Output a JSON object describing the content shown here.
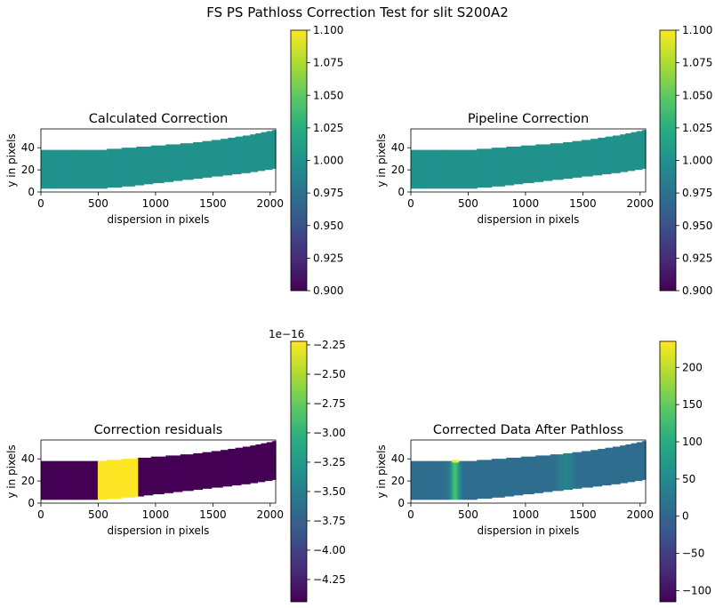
{
  "figure": {
    "suptitle": "FS PS Pathloss Correction Test for slit S200A2"
  },
  "chart_data": [
    {
      "type": "heatmap",
      "title": "Calculated Correction",
      "xlabel": "dispersion in pixels",
      "ylabel": "y in pixels",
      "xlim": [
        0,
        2048
      ],
      "ylim": [
        0,
        57
      ],
      "xticks": [
        "0",
        "500",
        "1000",
        "1500",
        "2000"
      ],
      "yticks": [
        "0",
        "20",
        "40"
      ],
      "fill": "uniform",
      "value": 1.0,
      "colorbar": {
        "min": 0.9,
        "max": 1.1,
        "ticks": [
          "0.900",
          "0.925",
          "0.950",
          "0.975",
          "1.000",
          "1.025",
          "1.050",
          "1.075",
          "1.100"
        ],
        "offset_text": ""
      }
    },
    {
      "type": "heatmap",
      "title": "Pipeline Correction",
      "xlabel": "dispersion in pixels",
      "ylabel": "y in pixels",
      "xlim": [
        0,
        2048
      ],
      "ylim": [
        0,
        57
      ],
      "xticks": [
        "0",
        "500",
        "1000",
        "1500",
        "2000"
      ],
      "yticks": [
        "0",
        "20",
        "40"
      ],
      "fill": "uniform",
      "value": 1.0,
      "colorbar": {
        "min": 0.9,
        "max": 1.1,
        "ticks": [
          "0.900",
          "0.925",
          "0.950",
          "0.975",
          "1.000",
          "1.025",
          "1.050",
          "1.075",
          "1.100"
        ],
        "offset_text": ""
      }
    },
    {
      "type": "heatmap",
      "title": "Correction residuals",
      "xlabel": "dispersion in pixels",
      "ylabel": "y in pixels",
      "xlim": [
        0,
        2048
      ],
      "ylim": [
        0,
        57
      ],
      "xticks": [
        "0",
        "500",
        "1000",
        "1500",
        "2000"
      ],
      "yticks": [
        "0",
        "20",
        "40"
      ],
      "fill": "residual",
      "value": -4.44e-16,
      "block": {
        "x0": 490,
        "x1": 840,
        "value": -2.22e-16
      },
      "colorbar": {
        "min": -4.44,
        "max": -2.22,
        "ticks": [
          "−2.25",
          "−2.50",
          "−2.75",
          "−3.00",
          "−3.25",
          "−3.50",
          "−3.75",
          "−4.00",
          "−4.25"
        ],
        "offset_text": "1e−16"
      }
    },
    {
      "type": "heatmap",
      "title": "Corrected Data After Pathloss",
      "xlabel": "dispersion in pixels",
      "ylabel": "y in pixels",
      "xlim": [
        0,
        2048
      ],
      "ylim": [
        0,
        57
      ],
      "xticks": [
        "0",
        "500",
        "1000",
        "1500",
        "2000"
      ],
      "yticks": [
        "0",
        "20",
        "40"
      ],
      "fill": "data",
      "base_value": 10,
      "features": [
        {
          "x": 385,
          "value": 235
        },
        {
          "x": 1350,
          "value": 80
        }
      ],
      "colorbar": {
        "min": -115,
        "max": 235,
        "ticks": [
          "200",
          "150",
          "100",
          "50",
          "0",
          "−50",
          "−100"
        ],
        "offset_text": ""
      }
    }
  ]
}
